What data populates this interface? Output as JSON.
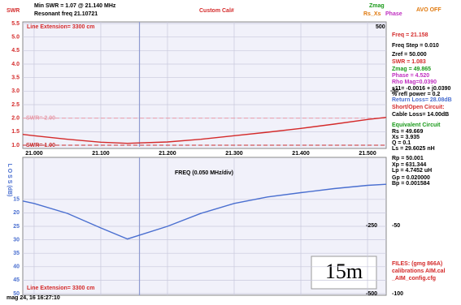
{
  "header": {
    "min_swr": "Min SWR = 1.07 @ 21.140 MHz",
    "resonant": "Resonant freq 21.10721",
    "custom_cal": "Custom Cal#",
    "zmag": "Zmag",
    "rs_xs": "Rs_Xs",
    "phase": "Phase",
    "avo": "AVO OFF"
  },
  "chart_data": [
    {
      "type": "line",
      "y_label": "SWR",
      "annotation": "Line Extension= 3300 cm",
      "color": "#d42a2a",
      "x": [
        20.983,
        21.0,
        21.05,
        21.1,
        21.14,
        21.2,
        21.25,
        21.3,
        21.35,
        21.4,
        21.45,
        21.5,
        21.528
      ],
      "values": [
        1.4,
        1.35,
        1.22,
        1.11,
        1.07,
        1.12,
        1.22,
        1.35,
        1.48,
        1.62,
        1.78,
        1.95,
        2.03
      ],
      "xlim": [
        20.983,
        21.528
      ],
      "ylim": [
        1,
        5.5
      ],
      "xticks": [
        {
          "value": 21.0,
          "label": "21.000"
        },
        {
          "value": 21.1,
          "label": "21.100"
        },
        {
          "value": 21.2,
          "label": "21.200"
        },
        {
          "value": 21.3,
          "label": "21.300"
        },
        {
          "value": 21.4,
          "label": "21.400"
        },
        {
          "value": 21.5,
          "label": "21.500"
        }
      ],
      "yticks": [
        5.5,
        {
          "value": 5,
          "label": "5.0"
        },
        4.5,
        {
          "value": 4,
          "label": "4.0"
        },
        3.5,
        {
          "value": 3,
          "label": "3.0"
        },
        2.5,
        {
          "value": 2,
          "label": "2.0"
        },
        1.5,
        {
          "value": 1,
          "label": "1.0"
        }
      ],
      "x_label": "FREQ (0.050 MHz/div)",
      "cursor": 21.158,
      "grid": true,
      "ref_lines": [
        {
          "value": 2,
          "label": "SWR= 2.00",
          "color": "#e89aa8"
        },
        {
          "value": 1,
          "label": "SWR= 1.00",
          "color": "#c83030"
        }
      ],
      "right_labels": [
        "500",
        "-50"
      ]
    },
    {
      "type": "line",
      "y_label": "L O S S (dB)",
      "annotation": "Line Extension= 3300 cm",
      "color": "#4a6fd0",
      "x": [
        20.983,
        21.0,
        21.05,
        21.1,
        21.14,
        21.2,
        21.25,
        21.3,
        21.35,
        21.4,
        21.45,
        21.5,
        21.528
      ],
      "values": [
        15.6,
        16.5,
        20.2,
        25.6,
        29.7,
        25.0,
        20.2,
        16.5,
        14.1,
        12.5,
        11.0,
        9.8,
        9.4
      ],
      "xlim": [
        20.983,
        21.528
      ],
      "ylim": [
        0,
        50
      ],
      "inverted": true,
      "yticks": [
        15,
        20,
        25,
        30,
        35,
        40,
        45,
        50
      ],
      "cursor": 21.158,
      "grid": true,
      "right_labels": [
        "-250",
        "-50",
        "-500",
        "-100"
      ]
    }
  ],
  "panel": {
    "lines": [
      {
        "text": "Freq = 21.158",
        "color": "#d42a2a"
      },
      {
        "text": "Freq Step = 0.010",
        "color": "#000"
      },
      {
        "text": "Zref = 50.000",
        "color": "#000"
      },
      {
        "text": "SWR = 1.083",
        "color": "#d42a2a"
      },
      {
        "text": "Zmag = 49.865",
        "color": "#1a9a1a"
      },
      {
        "text": "Phase = 4.520",
        "color": "#c030c0"
      },
      {
        "text": "Rho Mag=0.0390",
        "color": "#c030c0"
      },
      {
        "text": "s11= -0.0016 + j0.0390",
        "color": "#000"
      },
      {
        "text": "% refl power = 0.2",
        "color": "#000"
      },
      {
        "text": "Return Loss= 28.08dB",
        "color": "#4a6fd0"
      },
      {
        "text": "Short/Open Circuit:",
        "color": "#d42a2a"
      },
      {
        "text": "Cable Loss= 14.00dB",
        "color": "#000"
      },
      {
        "text": "Equivalent Circuit",
        "color": "#1a9a1a"
      },
      {
        "text": "Rs = 49.669",
        "color": "#000"
      },
      {
        "text": "Xs = 3.935",
        "color": "#000"
      },
      {
        "text": "Q = 0.1",
        "color": "#000"
      },
      {
        "text": "Ls = 29.6025 nH",
        "color": "#000"
      },
      {
        "text": "Rp = 50.001",
        "color": "#000"
      },
      {
        "text": "Xp = 631.344",
        "color": "#000"
      },
      {
        "text": "Lp = 4.7452 uH",
        "color": "#000"
      },
      {
        "text": "Gp = 0.020000",
        "color": "#000"
      },
      {
        "text": "Bp = 0.001584",
        "color": "#000"
      }
    ],
    "files": [
      "FILES: (gmg 866A)",
      "calibrations AIM.cal",
      "_AIM_config.cfg"
    ]
  },
  "band": "15m",
  "timestamp": "mag 24, 16 16:27:10"
}
